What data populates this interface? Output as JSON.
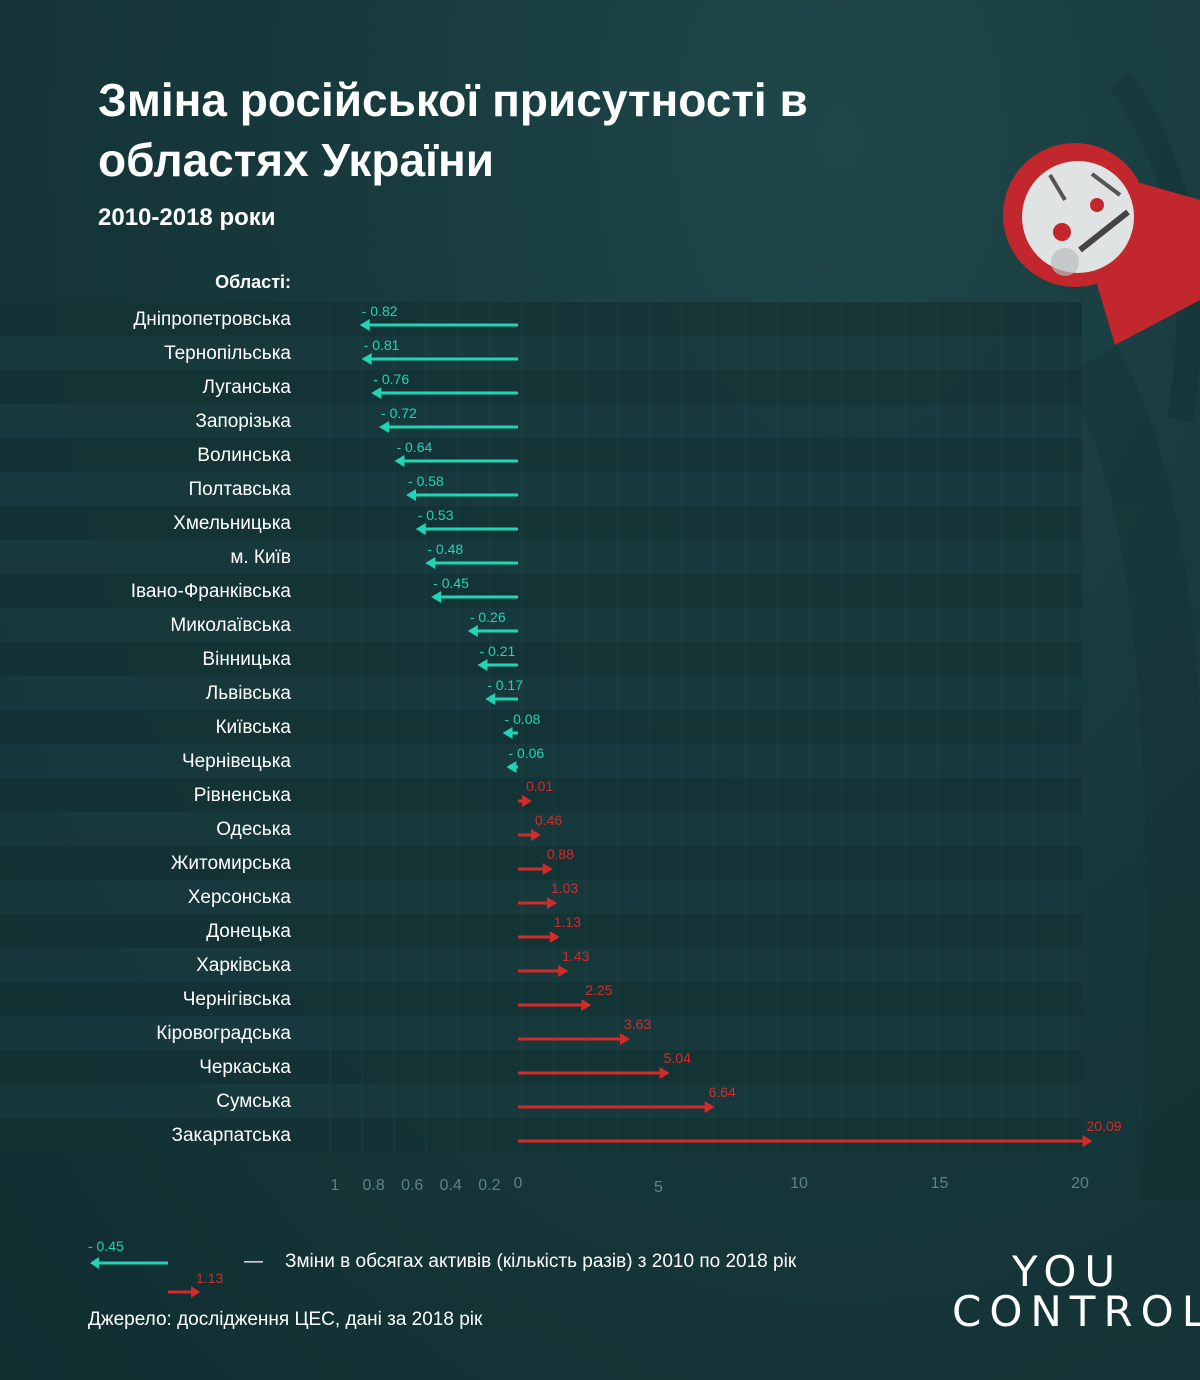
{
  "title": "Зміна російської присутності в областях України",
  "subtitle": "2010-2018 роки",
  "areas_header": "Області:",
  "legend": {
    "negative_example": "- 0.45",
    "positive_example": "1.13",
    "dash": "—",
    "text": "Зміни в обсягах активів (кількість разів) з 2010 по 2018 рік"
  },
  "source": "Джерело: дослідження ЦЕС, дані за 2018 рік",
  "logo": {
    "line1": "YOU",
    "line2": "CONTROL"
  },
  "colors": {
    "negative": "#21d4b4",
    "positive": "#d42a2a",
    "background": "#17393c"
  },
  "chart_data": {
    "type": "bar",
    "categories": [
      "Дніпропетровська",
      "Тернопільська",
      "Луганська",
      "Запорізька",
      "Волинська",
      "Полтавська",
      "Хмельницька",
      "м. Київ",
      "Івано-Франківська",
      "Миколаївська",
      "Вінницька",
      "Львівська",
      "Київська",
      "Чернівецька",
      "Рівненська",
      "Одеська",
      "Житомирська",
      "Херсонська",
      "Донецька",
      "Харківська",
      "Чернігівська",
      "Кіровоградська",
      "Черкаська",
      "Сумська",
      "Закарпатська"
    ],
    "values": [
      -0.82,
      -0.81,
      -0.76,
      -0.72,
      -0.64,
      -0.58,
      -0.53,
      -0.48,
      -0.45,
      -0.26,
      -0.21,
      -0.17,
      -0.08,
      -0.06,
      0.01,
      0.46,
      0.88,
      1.03,
      1.13,
      1.43,
      2.25,
      3.63,
      5.04,
      6.64,
      20.09
    ],
    "value_labels": [
      "- 0.82",
      "- 0.81",
      "- 0.76",
      "- 0.72",
      "- 0.64",
      "- 0.58",
      "- 0.53",
      "- 0.48",
      "- 0.45",
      "- 0.26",
      "- 0.21",
      "- 0.17",
      "- 0.08",
      "- 0.06",
      "0.01",
      "0.46",
      "0.88",
      "1.03",
      "1.13",
      "1.43",
      "2.25",
      "3.63",
      "5.04",
      "6.64",
      "20.09"
    ],
    "negative_ticks": [
      "1",
      "0.8",
      "0.6",
      "0.4",
      "0.2"
    ],
    "negative_tick_values": [
      1,
      0.8,
      0.6,
      0.4,
      0.2
    ],
    "positive_ticks": [
      "0",
      "5",
      "10",
      "15",
      "20"
    ],
    "positive_tick_values": [
      0,
      5,
      10,
      15,
      20
    ],
    "xlim_negative": [
      -1,
      0
    ],
    "xlim_positive": [
      0,
      20
    ],
    "grid": true,
    "legend_position": "bottom-left"
  }
}
